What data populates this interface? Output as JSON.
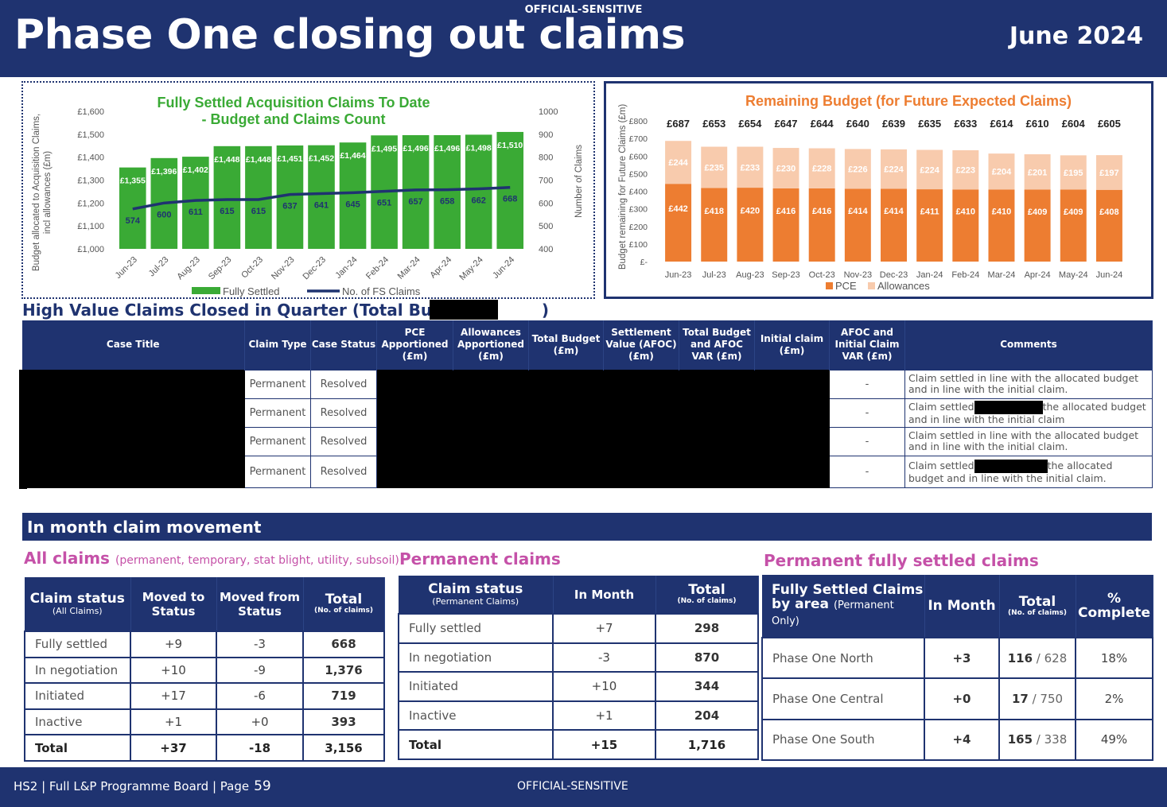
{
  "header": {
    "classification": "OFFICIAL-SENSITIVE",
    "title": "Phase One closing out claims",
    "date": "June 2024"
  },
  "chart_data": [
    {
      "type": "bar+line",
      "title": "Fully Settled Acquisition Claims To Date - Budget and Claims Count",
      "title_lines": [
        "Fully Settled Acquisition Claims To Date",
        "- Budget and Claims Count"
      ],
      "ylabel_lines": [
        "Budget allocated to Acquisition Claims,",
        "incl allowances (£m)"
      ],
      "y2label": "Number of Claims",
      "categories": [
        "Jun-23",
        "Jul-23",
        "Aug-23",
        "Sep-23",
        "Oct-23",
        "Nov-23",
        "Dec-23",
        "Jan-24",
        "Feb-24",
        "Mar-24",
        "Apr-24",
        "May-24",
        "Jun-24"
      ],
      "ylim": [
        1000,
        1600
      ],
      "y_ticks": [
        "£1,000",
        "£1,100",
        "£1,200",
        "£1,300",
        "£1,400",
        "£1,500",
        "£1,600"
      ],
      "y2lim": [
        400,
        1000
      ],
      "y2_ticks": [
        "400",
        "500",
        "600",
        "700",
        "800",
        "900",
        "1000"
      ],
      "series": [
        {
          "name": "Fully Settled",
          "kind": "bar",
          "color": "#3aaa35",
          "values": [
            1355,
            1396,
            1402,
            1448,
            1448,
            1451,
            1452,
            1464,
            1495,
            1496,
            1496,
            1498,
            1510
          ],
          "labels": [
            "£1,355",
            "£1,396",
            "£1,402",
            "£1,448",
            "£1,448",
            "£1,451",
            "£1,452",
            "£1,464",
            "£1,495",
            "£1,496",
            "£1,496",
            "£1,498",
            "£1,510"
          ]
        },
        {
          "name": "No. of FS Claims",
          "kind": "line",
          "axis": "y2",
          "color": "#1f3370",
          "values": [
            574,
            600,
            611,
            615,
            615,
            637,
            641,
            645,
            651,
            657,
            658,
            662,
            668
          ]
        }
      ],
      "legend": "bottom"
    },
    {
      "type": "stacked-bar",
      "title": "Remaining Budget (for Future Expected Claims)",
      "ylabel": "Budget remaining for Future Claims (£m)",
      "categories": [
        "Jun-23",
        "Jul-23",
        "Aug-23",
        "Sep-23",
        "Oct-23",
        "Nov-23",
        "Dec-23",
        "Jan-24",
        "Feb-24",
        "Mar-24",
        "Apr-24",
        "May-24",
        "Jun-24"
      ],
      "ylim": [
        0,
        800
      ],
      "y_ticks": [
        "£-",
        "£100",
        "£200",
        "£300",
        "£400",
        "£500",
        "£600",
        "£700",
        "£800"
      ],
      "totals": [
        687,
        653,
        654,
        647,
        644,
        640,
        639,
        635,
        633,
        614,
        610,
        604,
        605
      ],
      "series": [
        {
          "name": "PCE",
          "color": "#ed7d31",
          "values": [
            442,
            418,
            420,
            416,
            416,
            414,
            414,
            411,
            410,
            410,
            409,
            409,
            408
          ]
        },
        {
          "name": "Allowances",
          "color": "#f8cbad",
          "values": [
            244,
            235,
            233,
            230,
            228,
            226,
            224,
            224,
            223,
            204,
            201,
            195,
            197
          ]
        }
      ],
      "legend": "bottom"
    }
  ],
  "high_value": {
    "title": "High Value Claims Closed in Quarter (Total Budget",
    "title_close": ")",
    "headers": {
      "case_title": "Case Title",
      "claim_type": "Claim Type",
      "case_status": "Case Status",
      "pce": "PCE Apportioned (£m)",
      "allowances": "Allowances Apportioned (£m)",
      "total_budget": "Total Budget (£m)",
      "settlement": "Settlement Value (AFOC) (£m)",
      "total_afoc_var": "Total Budget and AFOC VAR (£m)",
      "initial_claim": "Initial claim (£m)",
      "afoc_initial_var": "AFOC and Initial Claim VAR (£m)",
      "comments": "Comments"
    },
    "rows": [
      {
        "claim_type": "Permanent",
        "case_status": "Resolved",
        "afoc_initial_var": "-",
        "comment_a": "Claim settled in line with the allocated budget and in line with the initial claim.",
        "comment_b": ""
      },
      {
        "claim_type": "Permanent",
        "case_status": "Resolved",
        "afoc_initial_var": "-",
        "comment_a": "Claim settled",
        "comment_b": "the allocated budget and in line with the initial claim"
      },
      {
        "claim_type": "Permanent",
        "case_status": "Resolved",
        "afoc_initial_var": "-",
        "comment_a": "Claim settled in line with the allocated budget and in line with the initial claim.",
        "comment_b": ""
      },
      {
        "claim_type": "Permanent",
        "case_status": "Resolved",
        "afoc_initial_var": "-",
        "comment_a": "Claim settled",
        "comment_b": "the allocated budget and in line with the initial claim."
      }
    ]
  },
  "movement": {
    "title": "In month claim movement"
  },
  "all_claims": {
    "title": "All claims",
    "subtitle": "(permanent, temporary, stat blight, utility, subsoil)",
    "headers": {
      "status": "Claim status",
      "status_sub": "(All Claims)",
      "moved_to": "Moved to Status",
      "moved_from": "Moved from Status",
      "total": "Total",
      "total_sub": "(No. of claims)"
    },
    "rows": [
      {
        "status": "Fully settled",
        "moved_to": "+9",
        "moved_from": "-3",
        "total": "668"
      },
      {
        "status": "In negotiation",
        "moved_to": "+10",
        "moved_from": "-9",
        "total": "1,376"
      },
      {
        "status": "Initiated",
        "moved_to": "+17",
        "moved_from": "-6",
        "total": "719"
      },
      {
        "status": "Inactive",
        "moved_to": "+1",
        "moved_from": "+0",
        "total": "393"
      }
    ],
    "total_row": {
      "status": "Total",
      "moved_to": "+37",
      "moved_from": "-18",
      "total": "3,156"
    }
  },
  "permanent_claims": {
    "title": "Permanent claims",
    "headers": {
      "status": "Claim status",
      "status_sub": "(Permanent Claims)",
      "in_month": "In Month",
      "total": "Total",
      "total_sub": "(No. of claims)"
    },
    "rows": [
      {
        "status": "Fully settled",
        "in_month": "+7",
        "total": "298"
      },
      {
        "status": "In negotiation",
        "in_month": "-3",
        "total": "870"
      },
      {
        "status": "Initiated",
        "in_month": "+10",
        "total": "344"
      },
      {
        "status": "Inactive",
        "in_month": "+1",
        "total": "204"
      }
    ],
    "total_row": {
      "status": "Total",
      "in_month": "+15",
      "total": "1,716"
    }
  },
  "fs_by_area": {
    "title": "Permanent fully settled claims",
    "headers": {
      "area": "Fully Settled Claims by area",
      "area_sub": "(Permanent Only)",
      "in_month": "In Month",
      "total": "Total",
      "total_sub": "(No. of claims)",
      "complete": "% Complete"
    },
    "rows": [
      {
        "area": "Phase One North",
        "in_month": "+3",
        "settled": "116",
        "of_total": " / 628",
        "complete": "18%"
      },
      {
        "area": "Phase One Central",
        "in_month": "+0",
        "settled": "17",
        "of_total": " / 750",
        "complete": "2%"
      },
      {
        "area": "Phase One South",
        "in_month": "+4",
        "settled": "165",
        "of_total": " / 338",
        "complete": "49%"
      }
    ]
  },
  "footer": {
    "left": "HS2 | Full L&P Programme Board | Page",
    "page": "59",
    "classification": "OFFICIAL-SENSITIVE"
  }
}
